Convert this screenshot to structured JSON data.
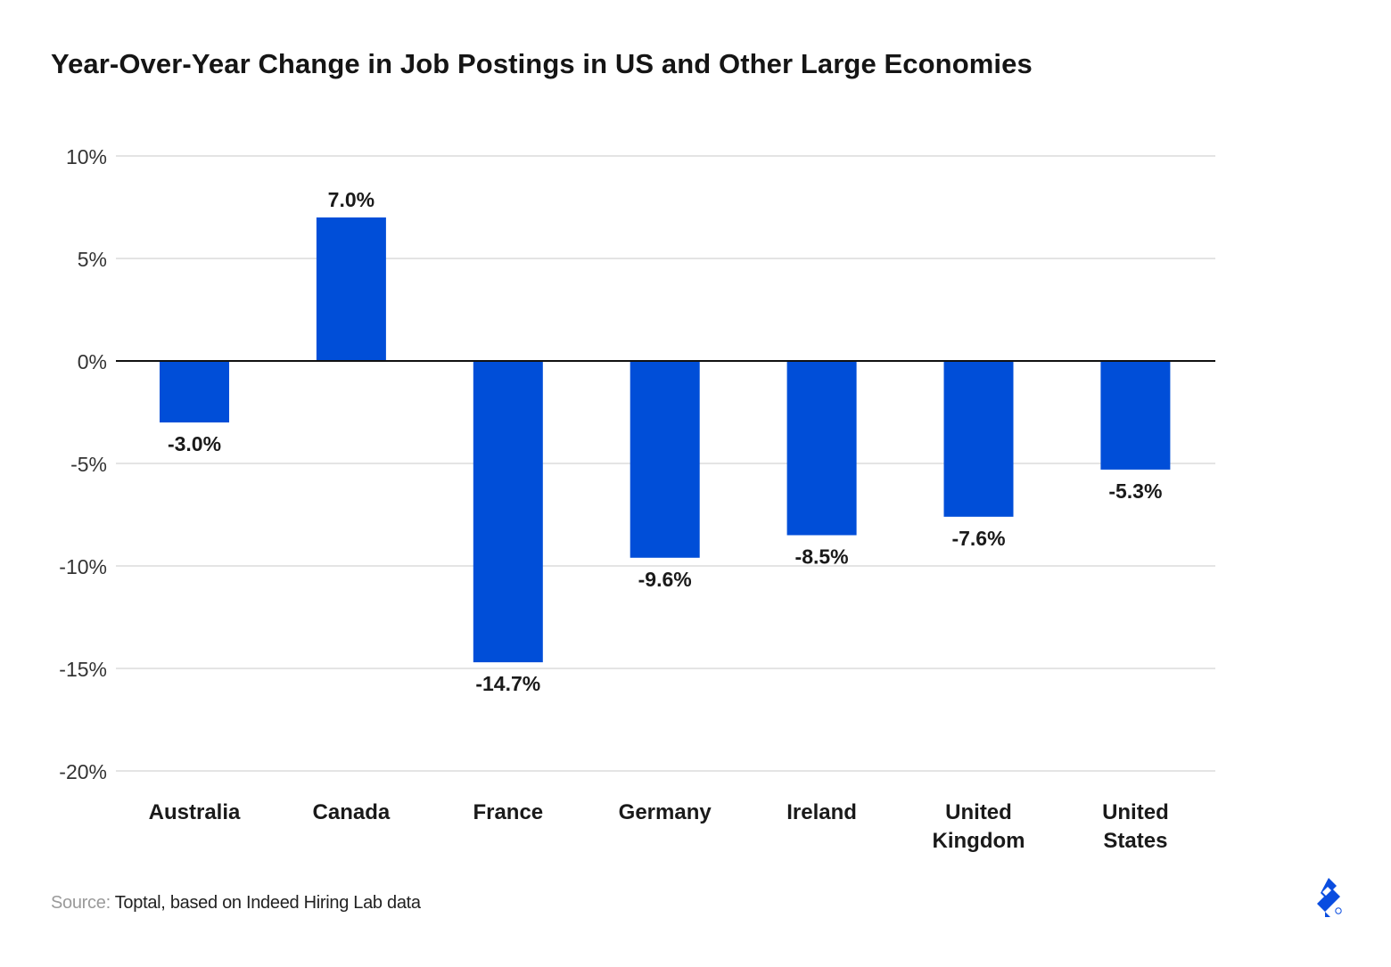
{
  "title": "Year-Over-Year Change in Job Postings in US and Other Large Economies",
  "source": {
    "prefix": "Source:",
    "text": "Toptal, based on Indeed Hiring Lab data"
  },
  "brand": {
    "logo_icon": "toptal-logo-icon",
    "color": "#0a4de0"
  },
  "chart_data": {
    "type": "bar",
    "categories": [
      [
        "Australia"
      ],
      [
        "Canada"
      ],
      [
        "France"
      ],
      [
        "Germany"
      ],
      [
        "Ireland"
      ],
      [
        "United",
        "Kingdom"
      ],
      [
        "United",
        "States"
      ]
    ],
    "values": [
      -3.0,
      7.0,
      -14.7,
      -9.6,
      -8.5,
      -7.6,
      -5.3
    ],
    "value_labels": [
      "-3.0%",
      "7.0%",
      "-14.7%",
      "-9.6%",
      "-8.5%",
      "-7.6%",
      "-5.3%"
    ],
    "y_ticks": [
      10,
      5,
      0,
      -5,
      -10,
      -15,
      -20
    ],
    "y_tick_labels": [
      "10%",
      "5%",
      "0%",
      "-5%",
      "-10%",
      "-15%",
      "-20%"
    ],
    "ylim": [
      -20,
      10
    ],
    "grid": true,
    "bar_color": "#004ed8",
    "grid_color": "#dcdcdc",
    "zero_line_color": "#111111"
  }
}
